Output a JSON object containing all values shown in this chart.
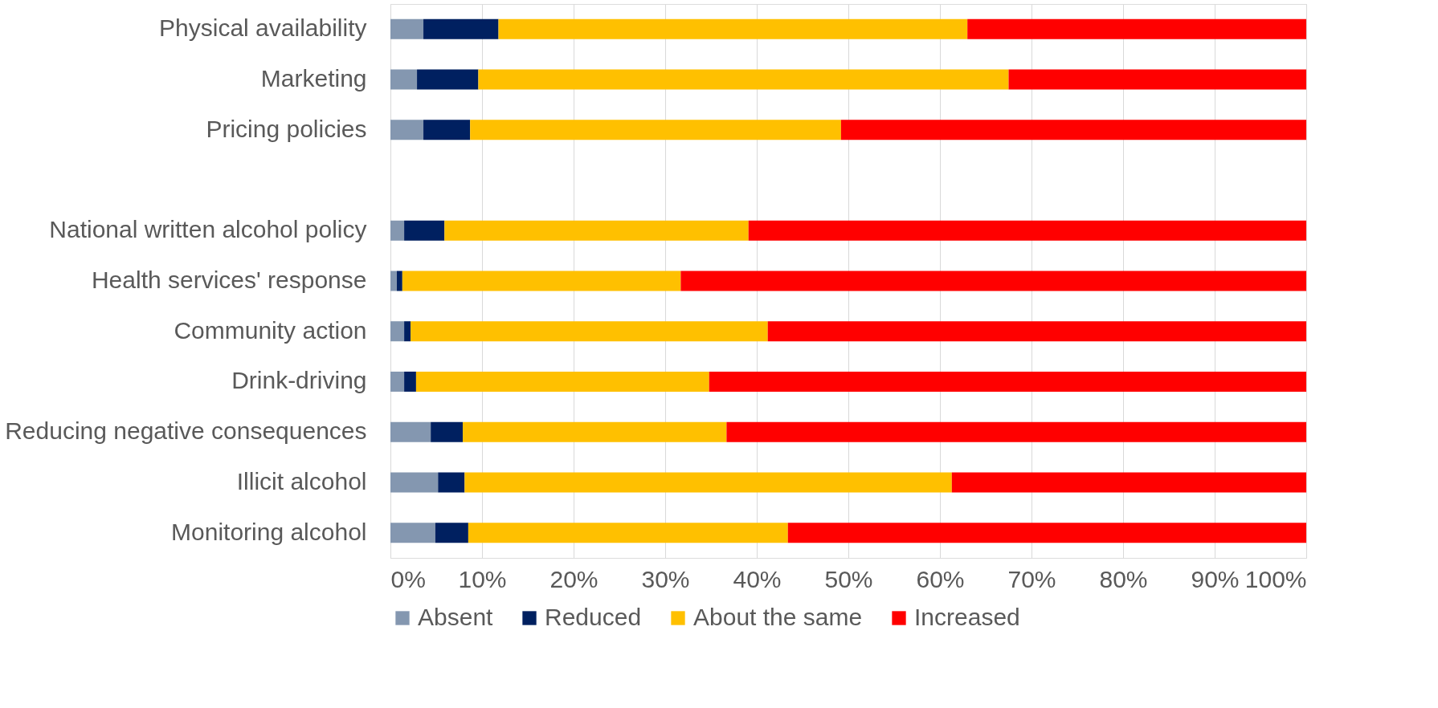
{
  "chart_data": {
    "type": "bar",
    "orientation": "horizontal",
    "stacked": true,
    "categories": [
      "Physical availability",
      "Marketing",
      "Pricing policies",
      null,
      "National written alcohol policy",
      "Health services' response",
      "Community action",
      "Drink-driving",
      "Reducing negative consequences",
      "Illicit alcohol",
      "Monitoring alcohol"
    ],
    "series": [
      {
        "name": "Absent",
        "color": "#8497b0",
        "values": [
          3.6,
          2.9,
          3.6,
          null,
          1.5,
          0.7,
          1.5,
          1.5,
          4.4,
          5.2,
          4.9
        ]
      },
      {
        "name": "Reduced",
        "color": "#002060",
        "values": [
          8.2,
          6.7,
          5.1,
          null,
          4.4,
          0.6,
          0.7,
          1.3,
          3.5,
          2.9,
          3.6
        ]
      },
      {
        "name": "About the same",
        "color": "#ffc000",
        "values": [
          51.2,
          57.9,
          40.5,
          null,
          33.2,
          30.4,
          39.0,
          32.0,
          28.8,
          53.2,
          34.9
        ]
      },
      {
        "name": "Increased",
        "color": "#ff0000",
        "values": [
          37.0,
          32.5,
          50.8,
          null,
          60.9,
          68.3,
          58.8,
          65.2,
          63.3,
          38.7,
          56.6
        ]
      }
    ],
    "xlim": [
      0,
      100
    ],
    "xticks": [
      {
        "value": 0,
        "label": "0%"
      },
      {
        "value": 10,
        "label": "10%"
      },
      {
        "value": 20,
        "label": "20%"
      },
      {
        "value": 30,
        "label": "30%"
      },
      {
        "value": 40,
        "label": "40%"
      },
      {
        "value": 50,
        "label": "50%"
      },
      {
        "value": 60,
        "label": "60%"
      },
      {
        "value": 70,
        "label": "70%"
      },
      {
        "value": 80,
        "label": "80%"
      },
      {
        "value": 90,
        "label": "90%"
      },
      {
        "value": 100,
        "label": "100%"
      }
    ],
    "grid": "x",
    "legend": "bottom"
  }
}
